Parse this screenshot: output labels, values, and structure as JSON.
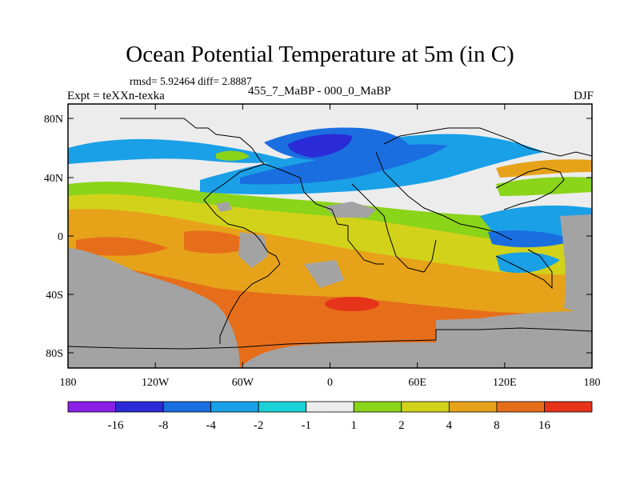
{
  "title": "Ocean Potential Temperature at 5m (in C)",
  "stats": "rmsd= 5.92464 diff= 2.8887",
  "expt": "Expt = teXXn-texka",
  "comparison": "455_7_MaBP - 000_0_MaBP",
  "season": "DJF",
  "axes": {
    "lat_labels": [
      "80N",
      "40N",
      "0",
      "40S",
      "80S"
    ],
    "lon_labels": [
      "180",
      "120W",
      "60W",
      "0",
      "60E",
      "120E",
      "180"
    ]
  },
  "colorbar": {
    "colors": [
      "#8a1fe6",
      "#2a2ad6",
      "#1a6ee0",
      "#1aa0e6",
      "#1ad2d6",
      "#ececec",
      "#8ad41a",
      "#d2d21a",
      "#e6a31a",
      "#e66e1a",
      "#e6341a"
    ],
    "labels": [
      "-16",
      "-8",
      "-4",
      "-2",
      "-1",
      "1",
      "2",
      "4",
      "8",
      "16"
    ]
  },
  "land_color": "#a3a3a3"
}
